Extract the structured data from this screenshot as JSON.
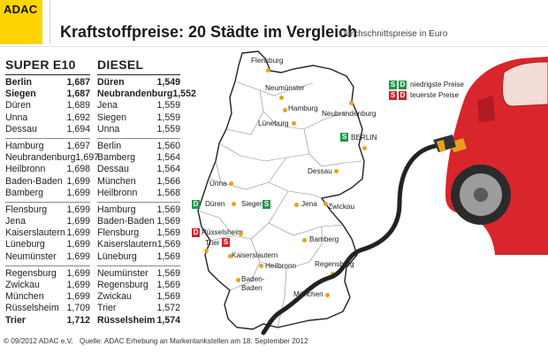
{
  "brand": "ADAC",
  "title": "Kraftstoffpreise: 20 Städte im Vergleich",
  "subtitle": "Durchschnittspreise in Euro",
  "super_e10": {
    "heading": "SUPER E10",
    "groups": [
      [
        [
          "Berlin",
          "1,687"
        ],
        [
          "Siegen",
          "1,687"
        ],
        [
          "Düren",
          "1,689"
        ],
        [
          "Unna",
          "1,692"
        ],
        [
          "Dessau",
          "1,694"
        ]
      ],
      [
        [
          "Hamburg",
          "1,697"
        ],
        [
          "Neubrandenburg",
          "1,697"
        ],
        [
          "Heilbronn",
          "1,698"
        ],
        [
          "Baden-Baden",
          "1,699"
        ],
        [
          "Bamberg",
          "1,699"
        ]
      ],
      [
        [
          "Flensburg",
          "1,699"
        ],
        [
          "Jena",
          "1,699"
        ],
        [
          "Kaiserslautern",
          "1,699"
        ],
        [
          "Lüneburg",
          "1,699"
        ],
        [
          "Neumünster",
          "1,699"
        ]
      ],
      [
        [
          "Regensburg",
          "1,699"
        ],
        [
          "Zwickau",
          "1,699"
        ],
        [
          "München",
          "1,699"
        ],
        [
          "Rüsselsheim",
          "1,709"
        ],
        [
          "Trier",
          "1,712"
        ]
      ]
    ]
  },
  "diesel": {
    "heading": "DIESEL",
    "groups": [
      [
        [
          "Düren",
          "1,549"
        ],
        [
          "Neubrandenburg",
          "1,552"
        ],
        [
          "Jena",
          "1,559"
        ],
        [
          "Siegen",
          "1,559"
        ],
        [
          "Unna",
          "1,559"
        ]
      ],
      [
        [
          "Berlin",
          "1,560"
        ],
        [
          "Bamberg",
          "1,564"
        ],
        [
          "Dessau",
          "1,564"
        ],
        [
          "München",
          "1,566"
        ],
        [
          "Heilbronn",
          "1,568"
        ]
      ],
      [
        [
          "Hamburg",
          "1,569"
        ],
        [
          "Baden-Baden",
          "1,569"
        ],
        [
          "Flensburg",
          "1,569"
        ],
        [
          "Kaiserslautern",
          "1,569"
        ],
        [
          "Lüneburg",
          "1,569"
        ]
      ],
      [
        [
          "Neumünster",
          "1,569"
        ],
        [
          "Regensburg",
          "1,569"
        ],
        [
          "Zwickau",
          "1,569"
        ],
        [
          "Trier",
          "1,572"
        ],
        [
          "Rüsselsheim",
          "1,574"
        ]
      ]
    ]
  },
  "map": {
    "cities": [
      "Flensburg",
      "Neumünster",
      "Hamburg",
      "Neubrandenburg",
      "Lüneburg",
      "BERLIN",
      "Dessau",
      "Unna",
      "Düren",
      "Siegen",
      "Jena",
      "Zwickau",
      "Rüsselsheim",
      "Trier",
      "Kaiserslautern",
      "Bamberg",
      "Heilbronn",
      "Regensburg",
      "Baden-Baden",
      "München"
    ]
  },
  "legend": {
    "low": "niedrigste Preise",
    "high": "teuerste Preise",
    "s": "S",
    "d": "D"
  },
  "colors": {
    "yellow": "#ffd400",
    "green": "#1a9a47",
    "red": "#d1232a",
    "dot": "#e8a31a",
    "car": "#d8262c"
  },
  "footer": {
    "copyright": "© 09/2012 ADAC e.V.",
    "source": "Quelle: ADAC Erhebung an Markentankstellen am 18. September 2012"
  }
}
